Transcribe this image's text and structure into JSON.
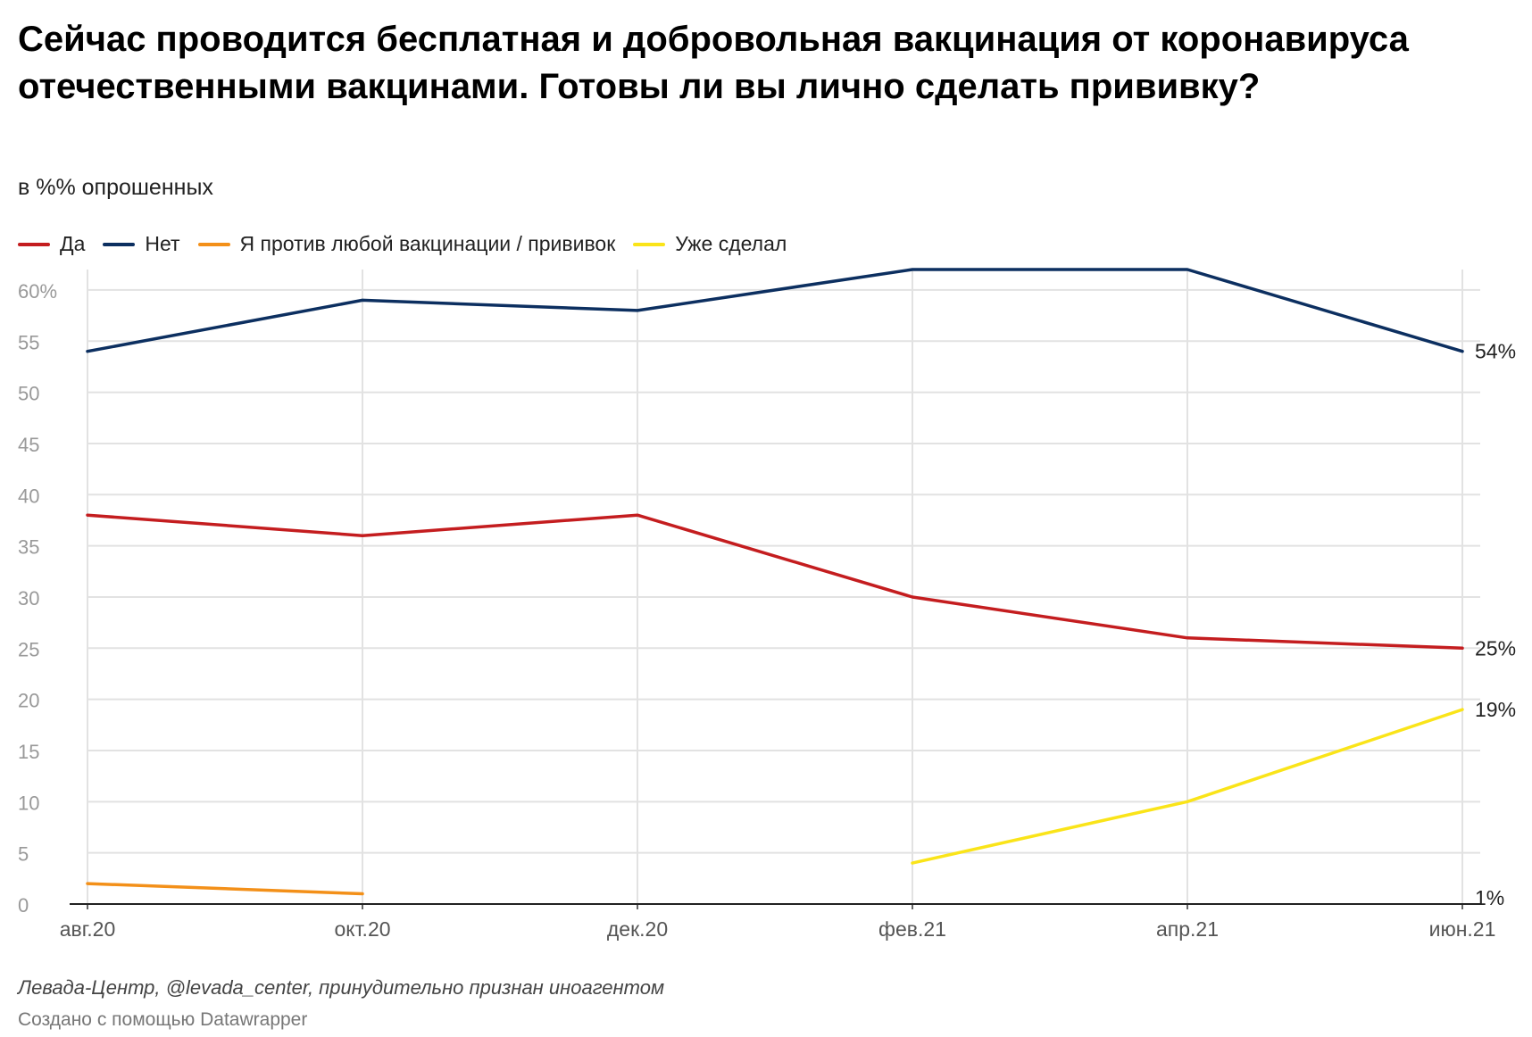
{
  "title": "Сейчас проводится бесплатная и добровольная вакцинация от коронавируса отечественными вакцинами. Готовы ли вы лично сделать прививку?",
  "subtitle": "в %% опрошенных",
  "legend": [
    {
      "label": "Да",
      "color": "#c41d1f"
    },
    {
      "label": "Нет",
      "color": "#0c2f60"
    },
    {
      "label": "Я против любой вакцинации / прививок",
      "color": "#f39019"
    },
    {
      "label": "Уже сделал",
      "color": "#fae419"
    }
  ],
  "chart_data": {
    "type": "line",
    "title": "Сейчас проводится бесплатная и добровольная вакцинация от коронавируса отечественными вакцинами. Готовы ли вы лично сделать прививку?",
    "subtitle": "в %% опрошенных",
    "xlabel": "",
    "ylabel": "",
    "categories": [
      "авг.20",
      "окт.20",
      "дек.20",
      "фев.21",
      "апр.21",
      "июн.21"
    ],
    "y_ticks": [
      "0",
      "5",
      "10",
      "15",
      "20",
      "25",
      "30",
      "35",
      "40",
      "45",
      "50",
      "55",
      "60%"
    ],
    "ylim": [
      0,
      62
    ],
    "grid": true,
    "legend_position": "top-left",
    "series": [
      {
        "name": "Да",
        "color": "#c41d1f",
        "values": [
          38,
          36,
          38,
          30,
          26,
          25
        ]
      },
      {
        "name": "Нет",
        "color": "#0c2f60",
        "values": [
          54,
          59,
          58,
          62,
          62,
          54
        ]
      },
      {
        "name": "Я против любой вакцинации / прививок",
        "color": "#f39019",
        "values": [
          2,
          1,
          null,
          null,
          null,
          null
        ]
      },
      {
        "name": "Уже сделал",
        "color": "#fae419",
        "values": [
          null,
          null,
          null,
          4,
          10,
          19
        ]
      }
    ],
    "end_labels": [
      {
        "series": "Нет",
        "text": "54%",
        "value": 54
      },
      {
        "series": "Да",
        "text": "25%",
        "value": 25
      },
      {
        "series": "Уже сделал",
        "text": "19%",
        "value": 19
      },
      {
        "series": "Я против любой вакцинации / прививок",
        "text": "1%",
        "value": 0.6
      }
    ]
  },
  "footer": {
    "source": "Левада-Центр, @levada_center, принудительно признан иноагентом",
    "credit": "Создано с помощью Datawrapper"
  }
}
